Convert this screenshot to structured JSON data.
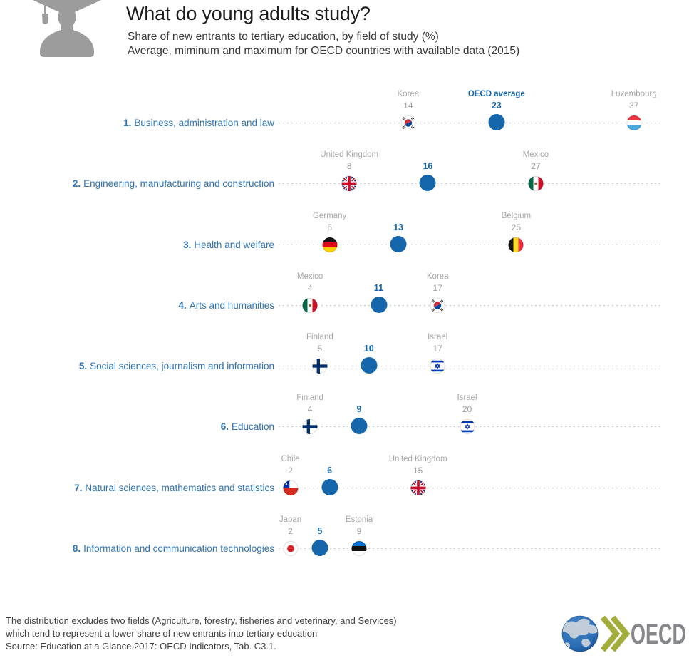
{
  "header": {
    "title": "What do young adults study?",
    "subtitle1": "Share of new entrants to tertiary education, by field of study (%)",
    "subtitle2": "Average, miminum and maximum for OECD countries with available data (2015)",
    "icon": "graduate-icon"
  },
  "chart_data": {
    "type": "dot-plot-range",
    "title": "What do young adults study?",
    "xlabel": "Share of new entrants to tertiary education (%)",
    "xlim": [
      0,
      40
    ],
    "grid": "dashed-row-lines",
    "avg_series_label": "OECD average",
    "rows": [
      {
        "rank": "1.",
        "field": "Business, administration and law",
        "min": {
          "country": "Korea",
          "value": 14,
          "flag": "korea"
        },
        "avg": {
          "label": "OECD average",
          "value": 23
        },
        "max": {
          "country": "Luxembourg",
          "value": 37,
          "flag": "luxembourg"
        }
      },
      {
        "rank": "2.",
        "field": "Engineering, manufacturing and construction",
        "min": {
          "country": "United Kingdom",
          "value": 8,
          "flag": "uk"
        },
        "avg": {
          "value": 16
        },
        "max": {
          "country": "Mexico",
          "value": 27,
          "flag": "mexico"
        }
      },
      {
        "rank": "3.",
        "field": "Health and welfare",
        "min": {
          "country": "Germany",
          "value": 6,
          "flag": "germany"
        },
        "avg": {
          "value": 13
        },
        "max": {
          "country": "Belgium",
          "value": 25,
          "flag": "belgium"
        }
      },
      {
        "rank": "4.",
        "field": "Arts and humanities",
        "min": {
          "country": "Mexico",
          "value": 4,
          "flag": "mexico"
        },
        "avg": {
          "value": 11
        },
        "max": {
          "country": "Korea",
          "value": 17,
          "flag": "korea"
        }
      },
      {
        "rank": "5.",
        "field": "Social sciences, journalism and information",
        "min": {
          "country": "Finland",
          "value": 5,
          "flag": "finland"
        },
        "avg": {
          "value": 10
        },
        "max": {
          "country": "Israel",
          "value": 17,
          "flag": "israel"
        }
      },
      {
        "rank": "6.",
        "field": "Education",
        "min": {
          "country": "Finland",
          "value": 4,
          "flag": "finland"
        },
        "avg": {
          "value": 9
        },
        "max": {
          "country": "Israel",
          "value": 20,
          "flag": "israel"
        }
      },
      {
        "rank": "7.",
        "field": "Natural sciences, mathematics and statistics",
        "min": {
          "country": "Chile",
          "value": 2,
          "flag": "chile"
        },
        "avg": {
          "value": 6
        },
        "max": {
          "country": "United Kingdom",
          "value": 15,
          "flag": "uk"
        }
      },
      {
        "rank": "8.",
        "field": "Information and communication technologies",
        "min": {
          "country": "Japan",
          "value": 2,
          "flag": "japan"
        },
        "avg": {
          "value": 5
        },
        "max": {
          "country": "Estonia",
          "value": 9,
          "flag": "estonia"
        }
      }
    ]
  },
  "footer": {
    "note1": "The distribution excludes two fields (Agriculture, forestry, fisheries and veterinary, and Services)",
    "note2": "which tend to represent a lower share of new entrants into tertiary education",
    "source": "Source: Education at a Glance 2017: OECD Indicators, Tab. C3.1.",
    "logo_text": "OECD"
  },
  "colors": {
    "accent_blue": "#1566ab",
    "label_blue": "#2f74b5",
    "gray_label": "#a6a6a6",
    "gray_value": "#9d9d9d",
    "dash_gray": "#c7c7c7",
    "icon_gray": "#9c9c9c",
    "logo_olive": "#a2ad3b",
    "logo_text_gray": "#85878a",
    "logo_globe_blue": "#2a6db5"
  }
}
